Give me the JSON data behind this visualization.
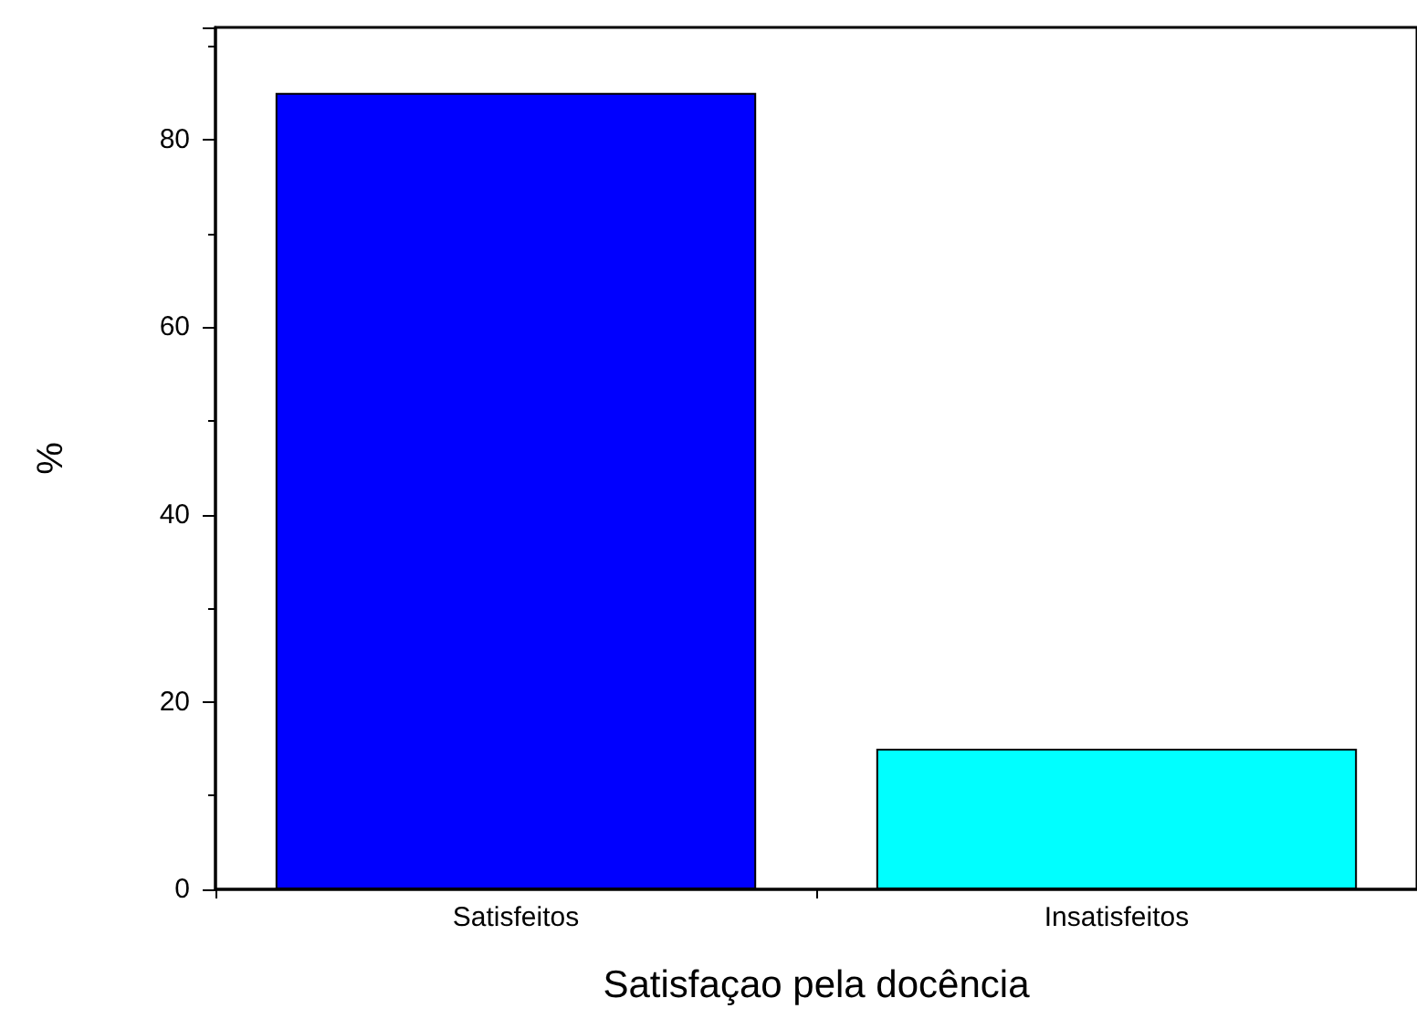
{
  "chart_data": {
    "type": "bar",
    "xlabel": "Satisfaçao pela docência",
    "ylabel": "%",
    "categories": [
      "Satisfeitos",
      "Insatisfeitos"
    ],
    "values": [
      85,
      15
    ],
    "colors": [
      "#0000ff",
      "#00ffff"
    ],
    "ylim": [
      0,
      92
    ],
    "yticks": [
      0,
      20,
      40,
      60,
      80
    ],
    "grid": false
  }
}
